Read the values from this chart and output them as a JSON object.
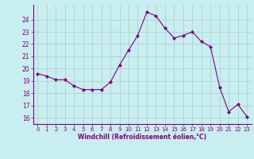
{
  "x": [
    0,
    1,
    2,
    3,
    4,
    5,
    6,
    7,
    8,
    9,
    10,
    11,
    12,
    13,
    14,
    15,
    16,
    17,
    18,
    19,
    20,
    21,
    22,
    23
  ],
  "y": [
    19.6,
    19.4,
    19.1,
    19.1,
    18.6,
    18.3,
    18.3,
    18.3,
    18.9,
    20.3,
    21.5,
    22.7,
    24.6,
    24.3,
    23.3,
    22.5,
    22.7,
    23.0,
    22.2,
    21.8,
    18.5,
    16.5,
    17.1,
    16.1
  ],
  "line_color": "#800080",
  "marker": "D",
  "marker_size": 2,
  "bg_color": "#c8eef0",
  "grid_color": "#aacccc",
  "xlabel": "Windchill (Refroidissement éolien,°C)",
  "xlabel_color": "#800080",
  "tick_color": "#800080",
  "ylim": [
    15.5,
    25.2
  ],
  "yticks": [
    16,
    17,
    18,
    19,
    20,
    21,
    22,
    23,
    24
  ],
  "xlim": [
    -0.5,
    23.5
  ],
  "xticks": [
    0,
    1,
    2,
    3,
    4,
    5,
    6,
    7,
    8,
    9,
    10,
    11,
    12,
    13,
    14,
    15,
    16,
    17,
    18,
    19,
    20,
    21,
    22,
    23
  ]
}
